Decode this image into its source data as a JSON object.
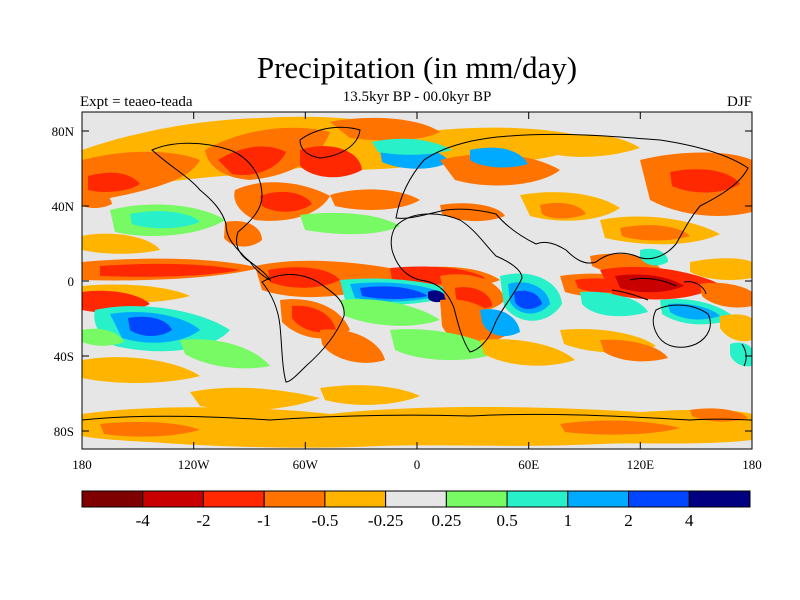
{
  "figure": {
    "title": "Precipitation (in mm/day)",
    "subtitle": "13.5kyr BP - 00.0kyr BP",
    "left_label": "Expt = teaeo-teada",
    "right_label": "DJF"
  },
  "map_axes": {
    "x_ticks": [
      "180",
      "120W",
      "60W",
      "0",
      "60E",
      "120E",
      "180"
    ],
    "y_ticks": [
      "80N",
      "40N",
      "0",
      "40S",
      "80S"
    ]
  },
  "colorbar": {
    "colors": [
      "#7f0000",
      "#c80000",
      "#ff2800",
      "#ff7300",
      "#ffb400",
      "#e6e6e6",
      "#78fa64",
      "#28f0c8",
      "#00aaff",
      "#0046ff",
      "#000080"
    ],
    "labels": [
      "-4",
      "-2",
      "-1",
      "-0.5",
      "-0.25",
      "0.25",
      "0.5",
      "1",
      "2",
      "4"
    ]
  },
  "palette": {
    "background": "#e6e6e6",
    "dry_strong": "#c80000",
    "dry": "#ff2800",
    "dry_mid": "#ff7300",
    "dry_light": "#ffb400",
    "wet_light": "#78fa64",
    "wet": "#28f0c8",
    "wet_mid": "#00aaff",
    "wet_strong": "#0046ff",
    "wet_max": "#000080"
  }
}
